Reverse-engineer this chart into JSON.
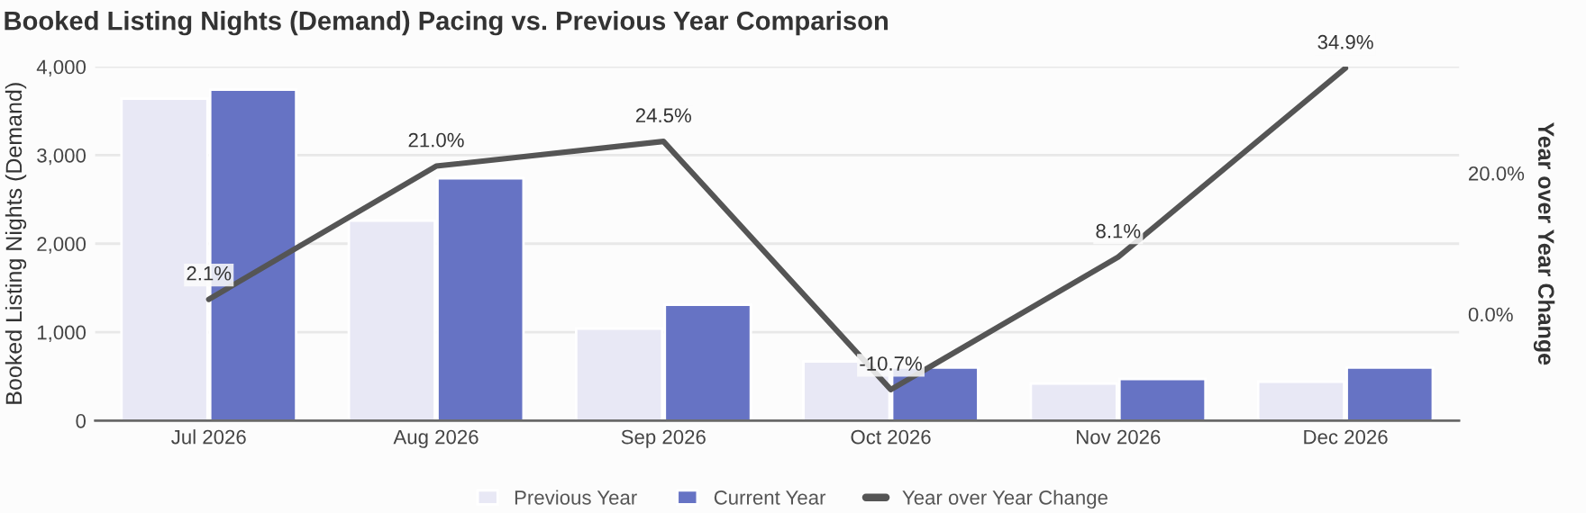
{
  "chart_data": {
    "type": "bar",
    "title": "Booked Listing Nights (Demand) Pacing vs. Previous Year Comparison",
    "categories": [
      "Jul 2026",
      "Aug 2026",
      "Sep 2026",
      "Oct 2026",
      "Nov 2026",
      "Dec 2026"
    ],
    "series": [
      {
        "name": "Previous Year",
        "color": "#e8e8f5",
        "values": [
          3640,
          2260,
          1040,
          670,
          420,
          440
        ]
      },
      {
        "name": "Current Year",
        "color": "#6673c4",
        "values": [
          3740,
          2740,
          1310,
          600,
          470,
          600
        ]
      },
      {
        "name": "Year over Year Change",
        "type": "line",
        "axis": "y2",
        "color": "#555555",
        "values": [
          2.1,
          21.0,
          24.5,
          -10.7,
          8.1,
          34.9
        ],
        "value_labels": [
          "2.1%",
          "21.0%",
          "24.5%",
          "-10.7%",
          "8.1%",
          "34.9%"
        ]
      }
    ],
    "ylabel": "Booked Listing Nights (Demand)",
    "y2label": "Year over Year Change",
    "ylim": [
      0,
      4000
    ],
    "yticks": [
      {
        "value": 0,
        "label": "0"
      },
      {
        "value": 1000,
        "label": "1,000"
      },
      {
        "value": 2000,
        "label": "2,000"
      },
      {
        "value": 3000,
        "label": "3,000"
      },
      {
        "value": 4000,
        "label": "4,000"
      }
    ],
    "y2lim": [
      -15.1,
      35.1
    ],
    "y2ticks": [
      {
        "value": 0,
        "label": "0.0%"
      },
      {
        "value": 20,
        "label": "20.0%"
      }
    ],
    "grid": "y",
    "legend": "bottom",
    "marker": "none",
    "line_style": "solid"
  }
}
